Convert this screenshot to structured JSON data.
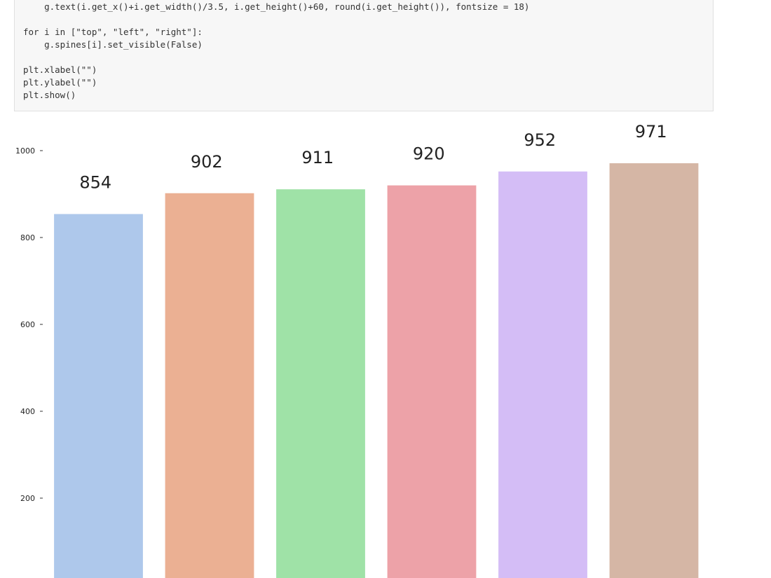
{
  "code": {
    "blocks": [
      [
        "    g.text(i.get_x()+i.get_width()/3.5, i.get_height()+60, round(i.get_height()), fontsize = 18)"
      ],
      [
        "for i in [\"top\", \"left\", \"right\"]:",
        "    g.spines[i].set_visible(False)"
      ],
      [
        "plt.xlabel(\"\")",
        "plt.ylabel(\"\")",
        "plt.show()"
      ]
    ]
  },
  "chart_data": {
    "type": "bar",
    "values": [
      854,
      902,
      911,
      920,
      952,
      971
    ],
    "colors": [
      "#aec8eb",
      "#ebb093",
      "#9fe2a7",
      "#eda2a8",
      "#d4bdf6",
      "#d5b6a5"
    ],
    "ylim": [
      0,
      1020
    ],
    "yticks": [
      200,
      400,
      600,
      800,
      1000
    ]
  }
}
